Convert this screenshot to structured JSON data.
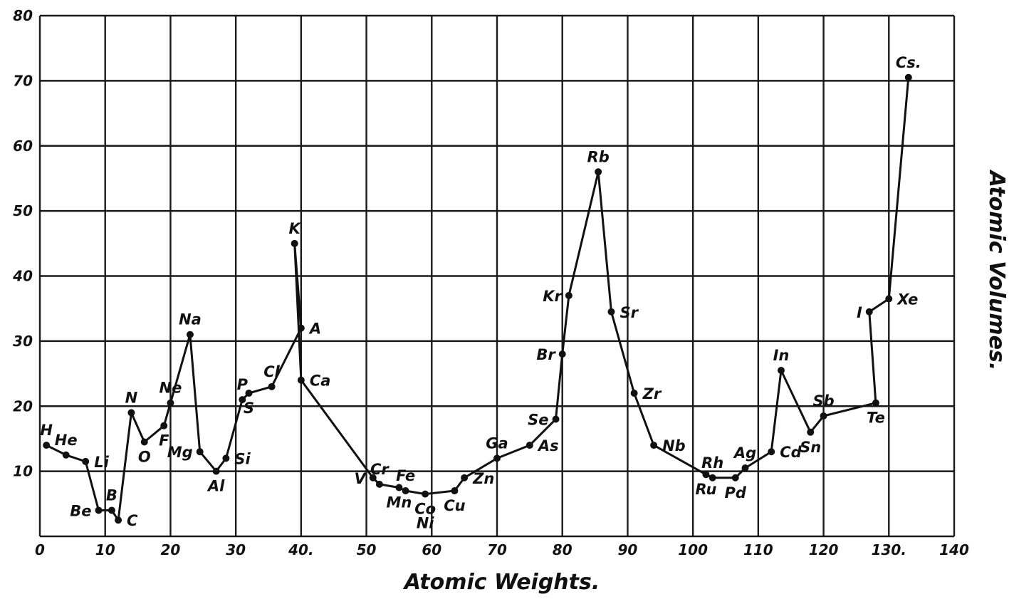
{
  "chart_data": {
    "type": "line",
    "xlabel": "Atomic Weights.",
    "ylabel": "Atomic Volumes.",
    "xlim": [
      0,
      140
    ],
    "ylim": [
      0,
      80
    ],
    "grid": true,
    "x_ticks": [
      {
        "value": 0,
        "label": "0"
      },
      {
        "value": 10,
        "label": "10"
      },
      {
        "value": 20,
        "label": "20"
      },
      {
        "value": 30,
        "label": "30"
      },
      {
        "value": 40,
        "label": "40."
      },
      {
        "value": 50,
        "label": "50"
      },
      {
        "value": 60,
        "label": "60"
      },
      {
        "value": 70,
        "label": "70"
      },
      {
        "value": 80,
        "label": "80"
      },
      {
        "value": 90,
        "label": "90"
      },
      {
        "value": 100,
        "label": "100"
      },
      {
        "value": 110,
        "label": "110"
      },
      {
        "value": 120,
        "label": "120"
      },
      {
        "value": 130,
        "label": "130."
      },
      {
        "value": 140,
        "label": "140"
      }
    ],
    "y_ticks": [
      {
        "value": 10,
        "label": "10"
      },
      {
        "value": 20,
        "label": "20"
      },
      {
        "value": 30,
        "label": "30"
      },
      {
        "value": 40,
        "label": "40"
      },
      {
        "value": 50,
        "label": "50"
      },
      {
        "value": 60,
        "label": "60"
      },
      {
        "value": 70,
        "label": "70"
      },
      {
        "value": 80,
        "label": "80"
      }
    ],
    "points": [
      {
        "label": "H",
        "x": 1,
        "y": 14,
        "label_pos": "above"
      },
      {
        "label": "He",
        "x": 4,
        "y": 12.5,
        "label_pos": "above"
      },
      {
        "label": "Li",
        "x": 7,
        "y": 11.5,
        "label_pos": "right"
      },
      {
        "label": "Be",
        "x": 9,
        "y": 4,
        "label_pos": "left"
      },
      {
        "label": "B",
        "x": 11,
        "y": 4,
        "label_pos": "above"
      },
      {
        "label": "C",
        "x": 12,
        "y": 2.5,
        "label_pos": "right"
      },
      {
        "label": "N",
        "x": 14,
        "y": 19,
        "label_pos": "above"
      },
      {
        "label": "O",
        "x": 16,
        "y": 14.5,
        "label_pos": "below"
      },
      {
        "label": "F",
        "x": 19,
        "y": 17,
        "label_pos": "below"
      },
      {
        "label": "Ne",
        "x": 20,
        "y": 20.5,
        "label_pos": "above"
      },
      {
        "label": "Na",
        "x": 23,
        "y": 31,
        "label_pos": "above"
      },
      {
        "label": "Mg",
        "x": 24.5,
        "y": 13,
        "label_pos": "left"
      },
      {
        "label": "Al",
        "x": 27,
        "y": 10,
        "label_pos": "below"
      },
      {
        "label": "Si",
        "x": 28.5,
        "y": 12,
        "label_pos": "right"
      },
      {
        "label": "P",
        "x": 31,
        "y": 21,
        "label_pos": "above"
      },
      {
        "label": "S",
        "x": 32,
        "y": 22,
        "label_pos": "below"
      },
      {
        "label": "Cl",
        "x": 35.5,
        "y": 23,
        "label_pos": "above"
      },
      {
        "label": "A",
        "x": 40,
        "y": 32,
        "label_pos": "right"
      },
      {
        "label": "K",
        "x": 39,
        "y": 45,
        "label_pos": "above"
      },
      {
        "label": "Ca",
        "x": 40,
        "y": 24,
        "label_pos": "right"
      },
      {
        "label": "V",
        "x": 51,
        "y": 9,
        "label_pos": "left"
      },
      {
        "label": "Cr",
        "x": 52,
        "y": 8,
        "label_pos": "above"
      },
      {
        "label": "Mn",
        "x": 55,
        "y": 7.5,
        "label_pos": "below"
      },
      {
        "label": "Fe",
        "x": 56,
        "y": 7,
        "label_pos": "above"
      },
      {
        "label": "Co",
        "x": 59,
        "y": 6.5,
        "label_pos": "below"
      },
      {
        "label": "Ni",
        "x": 59,
        "y": 6.5,
        "label_pos": "below2"
      },
      {
        "label": "Cu",
        "x": 63.5,
        "y": 7,
        "label_pos": "below"
      },
      {
        "label": "Zn",
        "x": 65,
        "y": 9,
        "label_pos": "right"
      },
      {
        "label": "Ga",
        "x": 70,
        "y": 12,
        "label_pos": "above"
      },
      {
        "label": "As",
        "x": 75,
        "y": 14,
        "label_pos": "right"
      },
      {
        "label": "Se",
        "x": 79,
        "y": 18,
        "label_pos": "left"
      },
      {
        "label": "Br",
        "x": 80,
        "y": 28,
        "label_pos": "left"
      },
      {
        "label": "Kr",
        "x": 81,
        "y": 37,
        "label_pos": "left"
      },
      {
        "label": "Rb",
        "x": 85.5,
        "y": 56,
        "label_pos": "above"
      },
      {
        "label": "Sr",
        "x": 87.5,
        "y": 34.5,
        "label_pos": "right"
      },
      {
        "label": "Zr",
        "x": 91,
        "y": 22,
        "label_pos": "right"
      },
      {
        "label": "Nb",
        "x": 94,
        "y": 14,
        "label_pos": "right"
      },
      {
        "label": "Ru",
        "x": 102,
        "y": 9.5,
        "label_pos": "below"
      },
      {
        "label": "Rh",
        "x": 103,
        "y": 9,
        "label_pos": "above"
      },
      {
        "label": "Pd",
        "x": 106.5,
        "y": 9,
        "label_pos": "below"
      },
      {
        "label": "Ag",
        "x": 108,
        "y": 10.5,
        "label_pos": "above"
      },
      {
        "label": "Cd",
        "x": 112,
        "y": 13,
        "label_pos": "right"
      },
      {
        "label": "In",
        "x": 113.5,
        "y": 25.5,
        "label_pos": "above"
      },
      {
        "label": "Sn",
        "x": 118,
        "y": 16,
        "label_pos": "below"
      },
      {
        "label": "Sb",
        "x": 120,
        "y": 18.5,
        "label_pos": "above"
      },
      {
        "label": "Te",
        "x": 128,
        "y": 20.5,
        "label_pos": "below"
      },
      {
        "label": "I",
        "x": 127,
        "y": 34.5,
        "label_pos": "left"
      },
      {
        "label": "Xe",
        "x": 130,
        "y": 36.5,
        "label_pos": "right"
      },
      {
        "label": "Cs.",
        "x": 133,
        "y": 70.5,
        "label_pos": "above"
      }
    ],
    "path_order": [
      "H",
      "He",
      "Li",
      "Be",
      "B",
      "C",
      "N",
      "O",
      "F",
      "Ne",
      "Na",
      "Mg",
      "Al",
      "Si",
      "P",
      "S",
      "Cl",
      "A",
      "K",
      "Ca",
      "V",
      "Cr",
      "Mn",
      "Fe",
      "Co",
      "Cu",
      "Zn",
      "Ga",
      "As",
      "Se",
      "Br",
      "Kr",
      "Rb",
      "Sr",
      "Zr",
      "Nb",
      "Ru",
      "Rh",
      "Pd",
      "Ag",
      "Cd",
      "In",
      "Sn",
      "Sb",
      "Te",
      "I",
      "Xe",
      "Cs."
    ]
  }
}
